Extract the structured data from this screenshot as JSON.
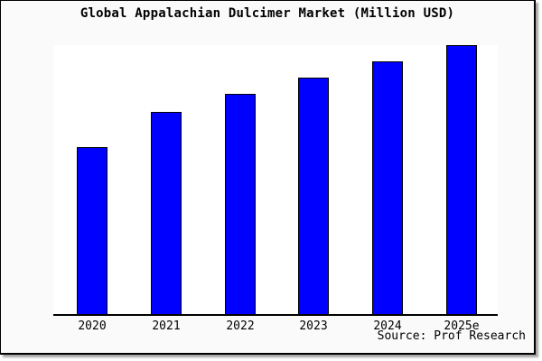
{
  "title": "Global Appalachian Dulcimer Market (Million USD)",
  "source": "Source: Prof Research",
  "colors": {
    "bar_fill": "#0000ff",
    "bar_border": "#000000",
    "background": "#fafafa",
    "plot_background": "#ffffff",
    "axis_line": "#000000",
    "text": "#000000",
    "frame_border": "#000000"
  },
  "chart_data": {
    "type": "bar",
    "categories": [
      "2020",
      "2021",
      "2022",
      "2023",
      "2024",
      "2025e"
    ],
    "values": [
      62,
      75,
      82,
      88,
      94,
      100
    ],
    "title": "Global Appalachian Dulcimer Market (Million USD)",
    "xlabel": "",
    "ylabel": "",
    "ylim": [
      0,
      100
    ],
    "grid": false,
    "legend": false,
    "y_axis_labels_visible": false,
    "note": "Chart shows no y-axis ticks or value labels; values are estimated relative bar heights with the tallest bar (2025e) normalized to 100."
  }
}
